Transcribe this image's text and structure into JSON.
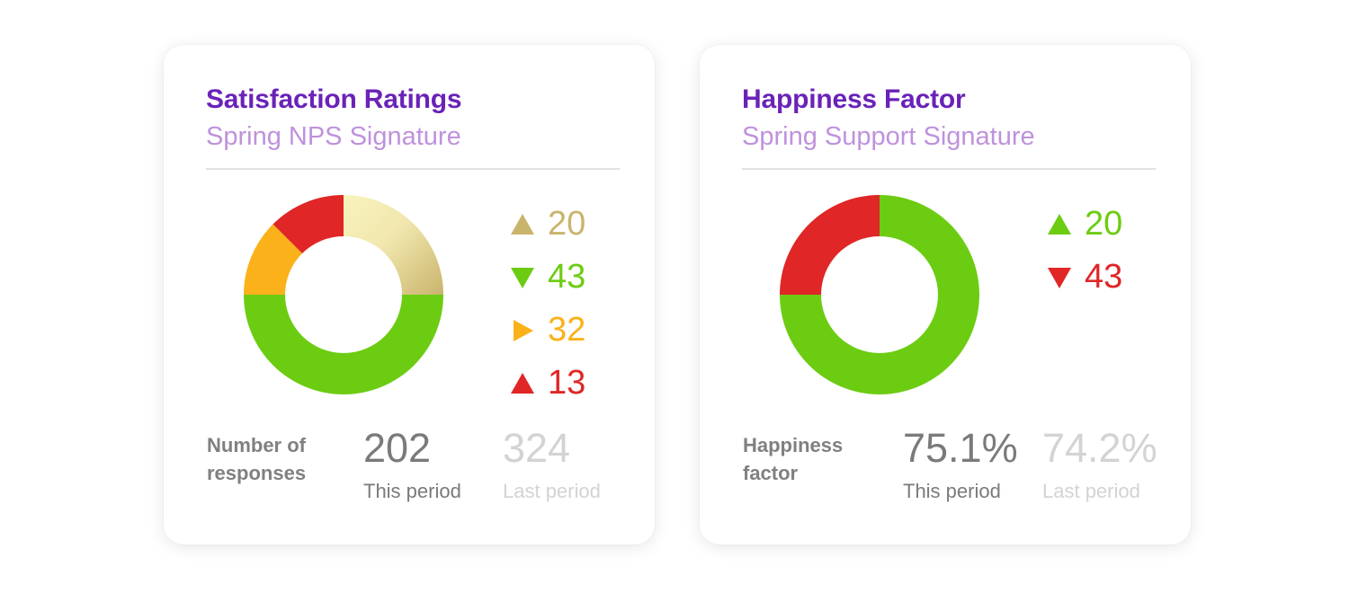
{
  "colors": {
    "title": "#6a22b8",
    "subtitle": "#bf92dc",
    "tan": "#c9b46c",
    "green": "#6ccc12",
    "orange": "#fbb11a",
    "red": "#e02626"
  },
  "cards": [
    {
      "title": "Satisfaction Ratings",
      "subtitle": "Spring NPS Signature",
      "legend": [
        {
          "value": "20",
          "icon": "triangle-up-icon",
          "color": "#c9b46c"
        },
        {
          "value": "43",
          "icon": "triangle-down-icon",
          "color": "#6ccc12"
        },
        {
          "value": "32",
          "icon": "triangle-right-icon",
          "color": "#fbb11a"
        },
        {
          "value": "13",
          "icon": "triangle-up-icon",
          "color": "#e02626"
        }
      ],
      "metric_label": "Number of responses",
      "this_value": "202",
      "this_caption": "This period",
      "last_value": "324",
      "last_caption": "Last period"
    },
    {
      "title": "Happiness Factor",
      "subtitle": "Spring Support Signature",
      "legend": [
        {
          "value": "20",
          "icon": "triangle-up-icon",
          "color": "#6ccc12"
        },
        {
          "value": "43",
          "icon": "triangle-down-icon",
          "color": "#e02626"
        }
      ],
      "metric_label": "Happiness factor",
      "this_value": "75.1%",
      "this_caption": "This period",
      "last_value": "74.2%",
      "last_caption": "Last period"
    }
  ],
  "chart_data": [
    {
      "type": "pie",
      "donut": true,
      "title": "Satisfaction Ratings",
      "slices": [
        {
          "value": 25,
          "color": "#c9b46c"
        },
        {
          "value": 50,
          "color": "#6ccc12"
        },
        {
          "value": 12.5,
          "color": "#fbb11a"
        },
        {
          "value": 12.5,
          "color": "#e02626"
        }
      ]
    },
    {
      "type": "pie",
      "donut": true,
      "title": "Happiness Factor",
      "slices": [
        {
          "value": 75,
          "color": "#6ccc12"
        },
        {
          "value": 25,
          "color": "#e02626"
        }
      ]
    }
  ]
}
